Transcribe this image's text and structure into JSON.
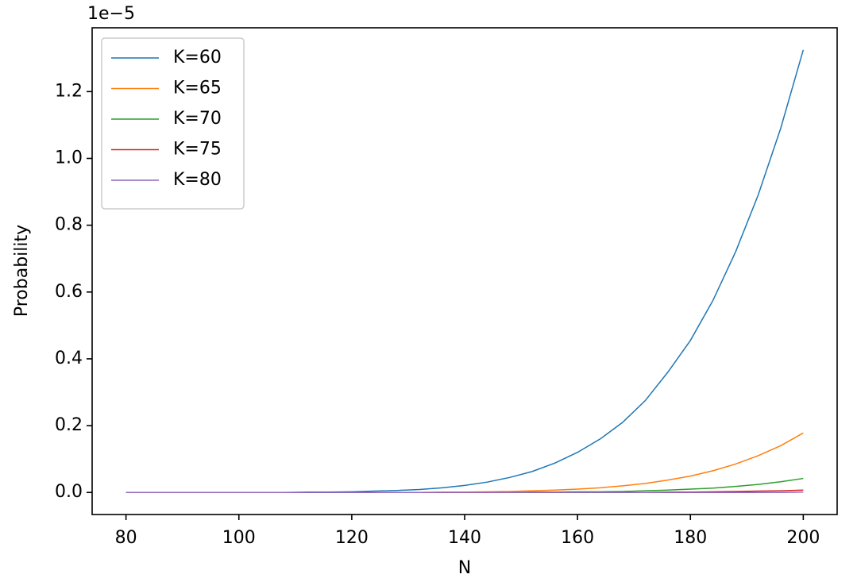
{
  "chart_data": {
    "type": "line",
    "offset_label": "1e−5",
    "xlabel": "N",
    "ylabel": "Probability",
    "x": [
      80,
      84,
      88,
      92,
      96,
      100,
      104,
      108,
      112,
      116,
      120,
      124,
      128,
      132,
      136,
      140,
      144,
      148,
      152,
      156,
      160,
      164,
      168,
      172,
      176,
      180,
      184,
      188,
      192,
      196,
      200
    ],
    "series": [
      {
        "name": "K=60",
        "color": "#1f77b4",
        "values": [
          0,
          0,
          0,
          0,
          0,
          0,
          0,
          0,
          0.001,
          0.001,
          0.002,
          0.004,
          0.006,
          0.009,
          0.014,
          0.021,
          0.031,
          0.045,
          0.063,
          0.088,
          0.12,
          0.16,
          0.21,
          0.275,
          0.36,
          0.455,
          0.575,
          0.72,
          0.89,
          1.09,
          1.325
        ]
      },
      {
        "name": "K=65",
        "color": "#ff7f0e",
        "values": [
          0,
          0,
          0,
          0,
          0,
          0,
          0,
          0,
          0,
          0,
          0,
          0,
          0,
          0,
          0.001,
          0.001,
          0.002,
          0.003,
          0.005,
          0.007,
          0.01,
          0.014,
          0.02,
          0.027,
          0.037,
          0.049,
          0.065,
          0.085,
          0.11,
          0.14,
          0.178
        ]
      },
      {
        "name": "K=70",
        "color": "#2ca02c",
        "values": [
          0,
          0,
          0,
          0,
          0,
          0,
          0,
          0,
          0,
          0,
          0,
          0,
          0,
          0,
          0,
          0,
          0,
          0,
          0.001,
          0.001,
          0.002,
          0.002,
          0.003,
          0.005,
          0.007,
          0.01,
          0.013,
          0.018,
          0.024,
          0.032,
          0.042
        ]
      },
      {
        "name": "K=75",
        "color": "#d62728",
        "values": [
          0,
          0,
          0,
          0,
          0,
          0,
          0,
          0,
          0,
          0,
          0,
          0,
          0,
          0,
          0,
          0,
          0,
          0,
          0,
          0,
          0,
          0,
          0,
          0,
          0.001,
          0.001,
          0.002,
          0.003,
          0.004,
          0.005,
          0.007
        ]
      },
      {
        "name": "K=80",
        "color": "#9467bd",
        "values": [
          0,
          0,
          0,
          0,
          0,
          0,
          0,
          0,
          0,
          0,
          0,
          0,
          0,
          0,
          0,
          0,
          0,
          0,
          0,
          0,
          0,
          0,
          0,
          0,
          0,
          0,
          0,
          0,
          0,
          0,
          0.001
        ]
      }
    ],
    "xlim": [
      74,
      206
    ],
    "ylim": [
      -0.066,
      1.391
    ],
    "xticks": [
      80,
      100,
      120,
      140,
      160,
      180,
      200
    ],
    "yticks": [
      {
        "value": 0,
        "label": "0.0"
      },
      0.2,
      0.4,
      0.6,
      0.8,
      {
        "value": 1,
        "label": "1.0"
      },
      1.2
    ],
    "legend": "upper left"
  }
}
